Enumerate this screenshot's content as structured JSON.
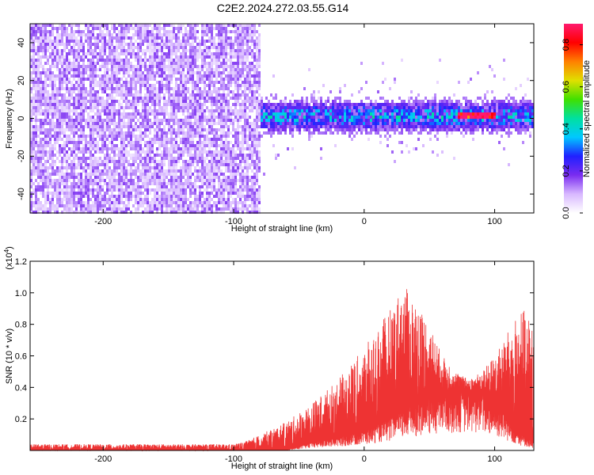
{
  "figure": {
    "title": "C2E2.2024.272.03.55.G14"
  },
  "chart_data": [
    {
      "type": "heatmap",
      "title": "C2E2.2024.272.03.55.G14",
      "xlabel": "Height of straight line (km)",
      "ylabel": "Frequency (Hz)",
      "xlim": [
        -256,
        130
      ],
      "ylim": [
        -50,
        50
      ],
      "x_ticks": [
        -200,
        -100,
        0,
        100
      ],
      "y_ticks": [
        -40,
        -20,
        0,
        20,
        40
      ],
      "colorbar": {
        "label": "Normalized spectral amplitude",
        "range": [
          0,
          0.9
        ],
        "ticks": [
          "0.0",
          "0.2",
          "0.4",
          "0.6",
          "0.8"
        ],
        "colormap": [
          "#ffffff",
          "#d8b8ff",
          "#7a2cf0",
          "#2020ff",
          "#00c8ff",
          "#00e0a0",
          "#40e000",
          "#e0e000",
          "#ff8000",
          "#ff0000",
          "#ff1a6e"
        ]
      },
      "regions": [
        {
          "name": "noise",
          "x_range": [
            -256,
            -80
          ],
          "freq_range": [
            -50,
            50
          ],
          "typical_amplitude": 0.12
        },
        {
          "name": "signal",
          "x_range": [
            -85,
            130
          ],
          "center_frequency_hz": 2,
          "freq_halfwidth_hz": 10,
          "peak_amplitude": 0.85,
          "peak_x_range": [
            70,
            100
          ]
        }
      ]
    },
    {
      "type": "area",
      "xlabel": "Height of straight line (km)",
      "ylabel": "SNR (10 * v/v)",
      "y_multiplier_label": "(x10",
      "y_multiplier_exp": "4",
      "y_multiplier_close": ")",
      "xlim": [
        -256,
        130
      ],
      "ylim": [
        0,
        1.2
      ],
      "x_ticks": [
        -200,
        -100,
        0,
        100
      ],
      "y_ticks": [
        "0.2",
        "0.4",
        "0.6",
        "0.8",
        "1.0",
        "1.2"
      ],
      "series": [
        {
          "color": "#ee3333",
          "envelope_x": [
            -256,
            -100,
            -90,
            -80,
            -60,
            -40,
            -20,
            0,
            20,
            30,
            40,
            50,
            60,
            70,
            80,
            90,
            100,
            110,
            120,
            130
          ],
          "envelope_y": [
            0.04,
            0.04,
            0.06,
            0.1,
            0.18,
            0.3,
            0.45,
            0.65,
            0.9,
            1.05,
            0.95,
            0.8,
            0.6,
            0.5,
            0.45,
            0.5,
            0.6,
            0.75,
            0.9,
            0.85
          ],
          "baseline_y": [
            0.0,
            0.0,
            0.0,
            0.0,
            0.0,
            0.05,
            0.08,
            0.12,
            0.2,
            0.25,
            0.3,
            0.33,
            0.36,
            0.37,
            0.38,
            0.36,
            0.3,
            0.2,
            0.1,
            0.05
          ]
        }
      ]
    }
  ]
}
